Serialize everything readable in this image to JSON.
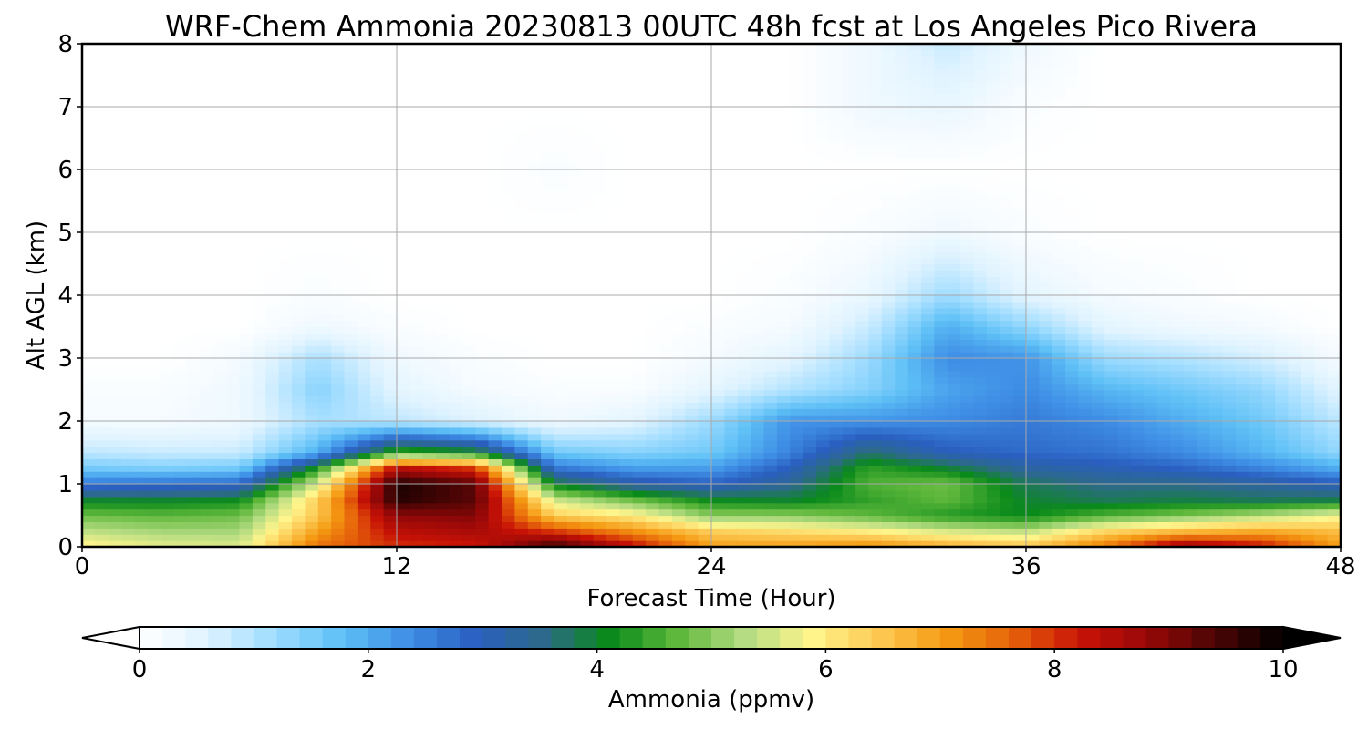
{
  "chart_data": {
    "type": "heatmap",
    "title": "WRF-Chem Ammonia  20230813 00UTC 48h fcst at Los Angeles Pico Rivera",
    "xlabel": "Forecast Time (Hour)",
    "ylabel": "Alt AGL (km)",
    "xlim": [
      0,
      48
    ],
    "ylim": [
      0,
      8
    ],
    "xticks": [
      0,
      12,
      24,
      36,
      48
    ],
    "yticks": [
      0,
      1,
      2,
      3,
      4,
      5,
      6,
      7,
      8
    ],
    "grid": true,
    "colorbar": {
      "label": "Ammonia  (ppmv)",
      "range": [
        0,
        10
      ],
      "ticks": [
        0,
        2,
        4,
        6,
        8,
        10
      ],
      "extend": "both",
      "orientation": "horizontal",
      "colors": [
        "#ffffff",
        "#dff3ff",
        "#9fdcff",
        "#5ec0f6",
        "#3f8fe6",
        "#2a5fc0",
        "#2d6a8a",
        "#0a8a1a",
        "#5fb83c",
        "#b4dc82",
        "#fff58c",
        "#fcc852",
        "#f59a12",
        "#e5600a",
        "#c81206",
        "#960808",
        "#4a0504",
        "#000000"
      ]
    },
    "field": {
      "x_hours": [
        0,
        3,
        6,
        9,
        12,
        15,
        18,
        21,
        24,
        27,
        30,
        33,
        36,
        39,
        42,
        45,
        48
      ],
      "z_km": [
        0,
        0.25,
        0.5,
        0.75,
        1,
        1.25,
        1.5,
        2,
        2.5,
        3,
        3.5,
        4,
        5,
        6,
        7,
        8
      ],
      "values_ppmv": [
        [
          6.0,
          5.7,
          5.6,
          7.5,
          8.0,
          8.2,
          9.6,
          8.4,
          7.0,
          7.0,
          7.2,
          6.8,
          6.5,
          7.4,
          8.9,
          8.3,
          7.0
        ],
        [
          5.4,
          5.2,
          5.2,
          7.0,
          8.4,
          8.6,
          8.0,
          7.2,
          6.4,
          6.2,
          6.0,
          5.6,
          5.4,
          6.3,
          6.7,
          6.9,
          6.6
        ],
        [
          4.8,
          4.7,
          4.8,
          6.5,
          8.9,
          9.0,
          6.4,
          6.0,
          5.0,
          5.0,
          4.7,
          4.3,
          4.1,
          4.6,
          4.9,
          5.3,
          5.8
        ],
        [
          4.0,
          4.0,
          4.1,
          6.4,
          9.7,
          9.3,
          5.5,
          4.8,
          4.1,
          4.0,
          4.4,
          4.7,
          4.0,
          3.8,
          3.9,
          3.8,
          3.9
        ],
        [
          2.6,
          2.7,
          2.8,
          5.6,
          9.8,
          9.3,
          4.0,
          3.2,
          2.9,
          3.4,
          4.6,
          4.8,
          3.8,
          3.5,
          3.5,
          3.3,
          3.0
        ],
        [
          1.6,
          1.5,
          1.6,
          4.3,
          8.5,
          8.0,
          2.7,
          2.2,
          2.2,
          3.0,
          4.4,
          4.0,
          3.3,
          3.1,
          2.9,
          2.5,
          2.0
        ],
        [
          0.9,
          0.8,
          0.8,
          2.0,
          4.6,
          4.2,
          1.6,
          1.4,
          1.6,
          2.5,
          3.7,
          3.0,
          2.8,
          2.7,
          2.4,
          1.9,
          1.3
        ],
        [
          0.2,
          0.2,
          0.3,
          1.1,
          0.9,
          0.6,
          0.3,
          0.5,
          1.2,
          2.3,
          2.3,
          2.4,
          2.6,
          2.4,
          2.0,
          1.6,
          0.9
        ],
        [
          0.1,
          0.1,
          0.3,
          1.4,
          0.5,
          0.2,
          0.1,
          0.1,
          0.5,
          1.0,
          1.4,
          2.1,
          2.4,
          1.9,
          1.6,
          1.3,
          0.5
        ],
        [
          0.0,
          0.0,
          0.2,
          1.1,
          0.3,
          0.1,
          0.0,
          0.0,
          0.2,
          0.5,
          1.2,
          2.4,
          2.3,
          1.2,
          1.0,
          0.7,
          0.2
        ],
        [
          0.0,
          0.0,
          0.0,
          0.3,
          0.1,
          0.0,
          0.0,
          0.0,
          0.1,
          0.2,
          0.8,
          2.0,
          1.3,
          0.5,
          0.3,
          0.2,
          0.0
        ],
        [
          0.0,
          0.0,
          0.0,
          0.1,
          0.0,
          0.0,
          0.0,
          0.0,
          0.0,
          0.1,
          0.4,
          1.2,
          0.5,
          0.2,
          0.1,
          0.0,
          0.0
        ],
        [
          0.0,
          0.0,
          0.0,
          0.0,
          0.0,
          0.0,
          0.0,
          0.0,
          0.0,
          0.0,
          0.1,
          0.3,
          0.1,
          0.0,
          0.0,
          0.0,
          0.0
        ],
        [
          0.0,
          0.0,
          0.0,
          0.0,
          0.0,
          0.0,
          0.1,
          0.0,
          0.0,
          0.0,
          0.0,
          0.0,
          0.0,
          0.0,
          0.0,
          0.0,
          0.0
        ],
        [
          0.0,
          0.0,
          0.0,
          0.0,
          0.0,
          0.0,
          0.0,
          0.0,
          0.0,
          0.0,
          0.3,
          0.4,
          0.1,
          0.0,
          0.0,
          0.0,
          0.0
        ],
        [
          0.0,
          0.0,
          0.0,
          0.0,
          0.0,
          0.0,
          0.0,
          0.0,
          0.0,
          0.0,
          0.3,
          0.8,
          0.3,
          0.0,
          0.0,
          0.0,
          0.0
        ]
      ]
    }
  }
}
